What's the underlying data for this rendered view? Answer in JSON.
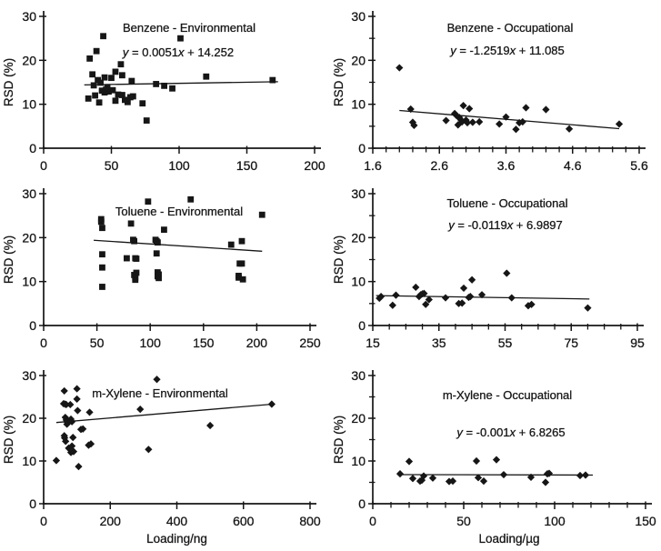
{
  "figure": {
    "background": "#ffffff",
    "ink": "#161616",
    "y_axis_label": "RSD (%)"
  },
  "chart_data": [
    {
      "type": "scatter",
      "panel": "benzene-environmental",
      "title": "Benzene - Environmental",
      "equation": "y = 0.0051x + 14.252",
      "marker": "square",
      "ylabel": "RSD (%)",
      "xlabel": null,
      "xlim": [
        0,
        200
      ],
      "ylim": [
        0,
        30
      ],
      "xtick_vals": [
        0,
        50,
        100,
        150,
        200
      ],
      "xtick_labels": [
        "0",
        "50",
        "100",
        "150",
        "200"
      ],
      "x_minor_step": null,
      "ytick_vals": [
        0,
        10,
        20,
        30
      ],
      "ytick_labels": [
        "0",
        "10",
        "20",
        "30"
      ],
      "y_minor_step": null,
      "grid": false,
      "points": [
        [
          33,
          11.3
        ],
        [
          34,
          20.4
        ],
        [
          36,
          16.8
        ],
        [
          37,
          14.3
        ],
        [
          38,
          12.0
        ],
        [
          39,
          22.1
        ],
        [
          40,
          15.5
        ],
        [
          41,
          10.4
        ],
        [
          42,
          14.9
        ],
        [
          43,
          13.1
        ],
        [
          44,
          25.5
        ],
        [
          45,
          16.1
        ],
        [
          45,
          12.7
        ],
        [
          46,
          13.3
        ],
        [
          47,
          13.9
        ],
        [
          48,
          12.9
        ],
        [
          50,
          16.0
        ],
        [
          51,
          13.2
        ],
        [
          53,
          17.4
        ],
        [
          53,
          10.8
        ],
        [
          55,
          12.2
        ],
        [
          57,
          19.1
        ],
        [
          58,
          16.6
        ],
        [
          58,
          12.1
        ],
        [
          60,
          11.0
        ],
        [
          62,
          10.5
        ],
        [
          64,
          11.6
        ],
        [
          65,
          15.3
        ],
        [
          66,
          11.8
        ],
        [
          73,
          10.2
        ],
        [
          76,
          6.3
        ],
        [
          83,
          14.6
        ],
        [
          89,
          14.2
        ],
        [
          95,
          13.6
        ],
        [
          101,
          25.0
        ],
        [
          120,
          16.3
        ],
        [
          169,
          15.5
        ]
      ],
      "trendline": [
        [
          30,
          14.41
        ],
        [
          173,
          15.13
        ]
      ],
      "layout": {
        "title_xy": [
          208,
          31
        ],
        "eq_xy": [
          196,
          58
        ]
      }
    },
    {
      "type": "scatter",
      "panel": "benzene-occupational",
      "title": "Benzene - Occupational",
      "equation": "y = -1.2519x + 11.085",
      "marker": "diamond",
      "ylabel": "RSD (%)",
      "xlabel": null,
      "xlim": [
        1.6,
        5.6
      ],
      "ylim": [
        0,
        30
      ],
      "xtick_vals": [
        1.6,
        2.6,
        3.6,
        4.6,
        5.6
      ],
      "xtick_labels": [
        "1.6",
        "2.6",
        "3.6",
        "4.6",
        "5.6"
      ],
      "x_minor_step": 0.2,
      "ytick_vals": [
        0,
        10,
        20,
        30
      ],
      "ytick_labels": [
        "0",
        "10",
        "20",
        "30"
      ],
      "y_minor_step": 5,
      "grid": false,
      "points": [
        [
          2.0,
          18.3
        ],
        [
          2.17,
          8.9
        ],
        [
          2.2,
          5.9
        ],
        [
          2.22,
          5.2
        ],
        [
          2.7,
          6.3
        ],
        [
          2.83,
          7.9
        ],
        [
          2.86,
          7.4
        ],
        [
          2.88,
          5.3
        ],
        [
          2.9,
          7.0
        ],
        [
          2.92,
          6.5
        ],
        [
          2.94,
          6.0
        ],
        [
          2.96,
          9.7
        ],
        [
          3.0,
          6.4
        ],
        [
          3.02,
          5.8
        ],
        [
          3.05,
          9.0
        ],
        [
          3.1,
          5.9
        ],
        [
          3.2,
          6.0
        ],
        [
          3.5,
          5.5
        ],
        [
          3.6,
          7.1
        ],
        [
          3.75,
          4.3
        ],
        [
          3.8,
          5.8
        ],
        [
          3.85,
          6.0
        ],
        [
          3.9,
          9.2
        ],
        [
          4.2,
          8.8
        ],
        [
          4.55,
          4.4
        ],
        [
          5.3,
          5.5
        ]
      ],
      "trendline": [
        [
          2.0,
          8.58
        ],
        [
          5.3,
          4.45
        ]
      ],
      "layout": {
        "title_xy": [
          198,
          31
        ],
        "eq_xy": [
          195,
          56
        ]
      }
    },
    {
      "type": "scatter",
      "panel": "toluene-environmental",
      "title": "Toluene - Environmental",
      "equation": null,
      "marker": "square",
      "ylabel": "RSD (%)",
      "xlabel": null,
      "xlim": [
        0,
        250
      ],
      "ylim": [
        0,
        30
      ],
      "xtick_vals": [
        0,
        50,
        100,
        150,
        200,
        250
      ],
      "xtick_labels": [
        "0",
        "50",
        "100",
        "150",
        "200",
        "250"
      ],
      "x_minor_step": null,
      "ytick_vals": [
        0,
        10,
        20,
        30
      ],
      "ytick_labels": [
        "0",
        "10",
        "20",
        "30"
      ],
      "y_minor_step": null,
      "grid": false,
      "points": [
        [
          54,
          24.2
        ],
        [
          54,
          23.6
        ],
        [
          55,
          22.2
        ],
        [
          55,
          16.2
        ],
        [
          55,
          13.2
        ],
        [
          55,
          8.8
        ],
        [
          78,
          15.3
        ],
        [
          82,
          23.2
        ],
        [
          84,
          19.5
        ],
        [
          85,
          19.2
        ],
        [
          85,
          11.5
        ],
        [
          86,
          15.3
        ],
        [
          86,
          10.9
        ],
        [
          86,
          10.4
        ],
        [
          87,
          15.2
        ],
        [
          87,
          12.0
        ],
        [
          98,
          28.2
        ],
        [
          105,
          19.5
        ],
        [
          106,
          19.2
        ],
        [
          106,
          16.4
        ],
        [
          107,
          18.9
        ],
        [
          107,
          12.1
        ],
        [
          107,
          11.2
        ],
        [
          108,
          10.8
        ],
        [
          108,
          11.6
        ],
        [
          113,
          21.8
        ],
        [
          138,
          28.7
        ],
        [
          176,
          18.4
        ],
        [
          183,
          11.3
        ],
        [
          183,
          10.9
        ],
        [
          184,
          14.1
        ],
        [
          186,
          14.1
        ],
        [
          186,
          19.2
        ],
        [
          187,
          10.5
        ],
        [
          205,
          25.2
        ]
      ],
      "trendline": [
        [
          47,
          19.4
        ],
        [
          205,
          16.9
        ]
      ],
      "layout": {
        "title_xy": [
          197,
          38
        ],
        "eq_xy": null
      }
    },
    {
      "type": "scatter",
      "panel": "toluene-occupational",
      "title": "Toluene - Occupational",
      "equation": "y = -0.0119x + 6.9897",
      "marker": "diamond",
      "ylabel": "RSD (%)",
      "xlabel": null,
      "xlim": [
        15,
        95
      ],
      "ylim": [
        0,
        30
      ],
      "xtick_vals": [
        15,
        35,
        55,
        75,
        95
      ],
      "xtick_labels": [
        "15",
        "35",
        "55",
        "75",
        "95"
      ],
      "x_minor_step": 5,
      "ytick_vals": [
        0,
        10,
        20,
        30
      ],
      "ytick_labels": [
        "0",
        "10",
        "20",
        "30"
      ],
      "y_minor_step": 5,
      "grid": false,
      "points": [
        [
          17,
          6.2
        ],
        [
          17.5,
          6.6
        ],
        [
          21,
          4.6
        ],
        [
          22,
          6.9
        ],
        [
          28,
          8.7
        ],
        [
          29,
          6.6
        ],
        [
          29.5,
          7.0
        ],
        [
          30,
          7.2
        ],
        [
          30.5,
          7.3
        ],
        [
          31,
          4.8
        ],
        [
          32,
          5.9
        ],
        [
          37,
          6.3
        ],
        [
          41,
          5.0
        ],
        [
          42,
          5.1
        ],
        [
          42.5,
          8.5
        ],
        [
          44,
          6.4
        ],
        [
          44.5,
          6.6
        ],
        [
          45,
          10.4
        ],
        [
          48,
          7.0
        ],
        [
          55.5,
          11.9
        ],
        [
          57,
          6.3
        ],
        [
          62,
          4.5
        ],
        [
          63,
          4.8
        ],
        [
          80,
          4.0
        ]
      ],
      "trendline": [
        [
          16,
          6.8
        ],
        [
          80.5,
          6.03
        ]
      ],
      "layout": {
        "title_xy": [
          195,
          29
        ],
        "eq_xy": [
          193,
          53
        ]
      }
    },
    {
      "type": "scatter",
      "panel": "m-xylene-environmental",
      "title": "m-Xylene - Environmental",
      "equation": null,
      "marker": "diamond",
      "ylabel": "RSD (%)",
      "xlabel": "Loading/ng",
      "xlim": [
        0,
        800
      ],
      "ylim": [
        0,
        30
      ],
      "xtick_vals": [
        0,
        200,
        400,
        600,
        800
      ],
      "xtick_labels": [
        "0",
        "200",
        "400",
        "600",
        "800"
      ],
      "x_minor_step": null,
      "ytick_vals": [
        0,
        10,
        20,
        30
      ],
      "ytick_labels": [
        "0",
        "10",
        "20",
        "30"
      ],
      "y_minor_step": null,
      "grid": false,
      "points": [
        [
          38,
          10.1
        ],
        [
          60,
          23.4
        ],
        [
          62,
          26.4
        ],
        [
          62,
          15.9
        ],
        [
          63,
          15.4
        ],
        [
          65,
          23.3
        ],
        [
          65,
          20.2
        ],
        [
          66,
          14.6
        ],
        [
          68,
          23.2
        ],
        [
          68,
          19.6
        ],
        [
          70,
          19.4
        ],
        [
          70,
          18.6
        ],
        [
          72,
          19.0
        ],
        [
          75,
          13.0
        ],
        [
          80,
          23.2
        ],
        [
          82,
          19.8
        ],
        [
          82,
          12.0
        ],
        [
          85,
          19.2
        ],
        [
          85,
          13.5
        ],
        [
          88,
          15.5
        ],
        [
          90,
          12.2
        ],
        [
          100,
          26.9
        ],
        [
          100,
          24.5
        ],
        [
          102,
          21.8
        ],
        [
          105,
          8.7
        ],
        [
          112,
          17.4
        ],
        [
          118,
          17.5
        ],
        [
          135,
          13.7
        ],
        [
          138,
          21.4
        ],
        [
          142,
          14.0
        ],
        [
          290,
          22.1
        ],
        [
          315,
          12.7
        ],
        [
          340,
          29.1
        ],
        [
          500,
          18.3
        ],
        [
          685,
          23.3
        ]
      ],
      "trendline": [
        [
          38,
          19.0
        ],
        [
          688,
          23.3
        ]
      ],
      "layout": {
        "title_xy": [
          176,
          43
        ],
        "eq_xy": null
      }
    },
    {
      "type": "scatter",
      "panel": "m-xylene-occupational",
      "title": "m-Xylene - Occupational",
      "equation": "y = -0.001x + 6.8265",
      "marker": "diamond",
      "ylabel": "RSD (%)",
      "xlabel": "Loading/µg",
      "xlim": [
        0,
        150
      ],
      "ylim": [
        0,
        30
      ],
      "xtick_vals": [
        0,
        50,
        100,
        150
      ],
      "xtick_labels": [
        "0",
        "50",
        "100",
        "150"
      ],
      "x_minor_step": 10,
      "ytick_vals": [
        0,
        10,
        20,
        30
      ],
      "ytick_labels": [
        "0",
        "10",
        "20",
        "30"
      ],
      "y_minor_step": 5,
      "grid": false,
      "points": [
        [
          15,
          7.0
        ],
        [
          20,
          9.9
        ],
        [
          22,
          5.9
        ],
        [
          26,
          5.3
        ],
        [
          27,
          5.5
        ],
        [
          28,
          6.5
        ],
        [
          33,
          6.0
        ],
        [
          42,
          5.2
        ],
        [
          44,
          5.3
        ],
        [
          57,
          10.0
        ],
        [
          58,
          6.1
        ],
        [
          61,
          5.3
        ],
        [
          68,
          10.3
        ],
        [
          72,
          6.8
        ],
        [
          87,
          6.2
        ],
        [
          95,
          5.0
        ],
        [
          96,
          7.0
        ],
        [
          97,
          7.1
        ],
        [
          114,
          6.6
        ],
        [
          117,
          6.7
        ]
      ],
      "trendline": [
        [
          15,
          6.81
        ],
        [
          121,
          6.71
        ]
      ],
      "layout": {
        "title_xy": [
          195,
          45
        ],
        "eq_xy": [
          199,
          86
        ]
      }
    }
  ]
}
